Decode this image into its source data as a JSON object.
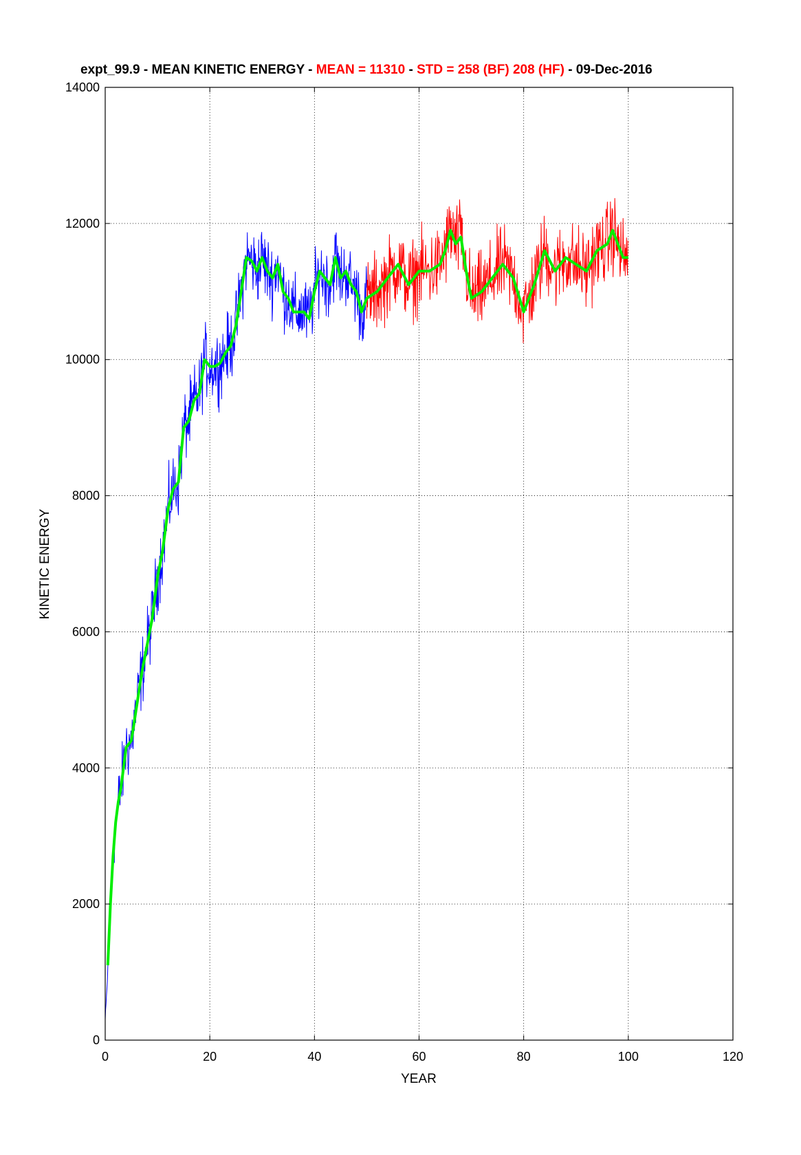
{
  "chart_data": {
    "type": "line",
    "title_parts": [
      {
        "text": "expt_99.9 - MEAN KINETIC ENERGY - ",
        "color": "#000000"
      },
      {
        "text": "MEAN = 11310",
        "color": "#ff0000"
      },
      {
        "text": " - ",
        "color": "#000000"
      },
      {
        "text": "STD =  258 (BF)  208 (HF)",
        "color": "#ff0000"
      },
      {
        "text": " - 09-Dec-2016",
        "color": "#000000"
      }
    ],
    "xlabel": "YEAR",
    "ylabel": "KINETIC ENERGY",
    "xlim": [
      0,
      120
    ],
    "ylim": [
      0,
      14000
    ],
    "xticks": [
      "0",
      "20",
      "40",
      "60",
      "80",
      "100",
      "120"
    ],
    "yticks": [
      "0",
      "2000",
      "4000",
      "6000",
      "8000",
      "10000",
      "12000",
      "14000"
    ],
    "grid": true,
    "series": [
      {
        "color": "#0000ff",
        "noise": 250,
        "x": [
          0,
          0.3,
          0.6,
          1,
          1.5,
          2,
          2.5,
          3,
          4,
          5,
          6,
          7,
          8,
          9,
          10,
          11,
          12,
          13,
          14,
          15,
          16,
          17,
          18,
          19,
          20,
          21,
          22,
          23,
          24,
          25,
          26,
          27,
          28,
          29,
          30,
          31,
          32,
          33,
          34,
          35,
          36,
          37,
          38,
          39,
          40,
          41,
          42,
          43,
          44,
          45,
          46,
          47,
          48,
          49,
          50
        ],
        "y": [
          300,
          700,
          1200,
          2000,
          2700,
          3200,
          3500,
          3700,
          4300,
          4400,
          4900,
          5400,
          5800,
          6200,
          6800,
          7200,
          7800,
          8100,
          8200,
          9000,
          9100,
          9400,
          9500,
          10000,
          9900,
          9900,
          9950,
          10100,
          10200,
          10500,
          11000,
          11500,
          11450,
          11300,
          11500,
          11300,
          11200,
          11400,
          11000,
          10900,
          10700,
          10700,
          10700,
          10600,
          11000,
          11300,
          11200,
          11100,
          11500,
          11200,
          11300,
          11100,
          11000,
          10700,
          10900
        ]
      },
      {
        "color": "#ff0000",
        "noise": 280,
        "x": [
          50,
          52,
          54,
          56,
          58,
          60,
          62,
          64,
          65,
          66,
          67,
          68,
          69,
          70,
          72,
          74,
          76,
          78,
          80,
          82,
          84,
          86,
          88,
          90,
          92,
          94,
          96,
          97,
          98,
          99,
          100
        ],
        "y": [
          10900,
          11000,
          11200,
          11400,
          11100,
          11300,
          11300,
          11400,
          11600,
          11900,
          11700,
          11800,
          11300,
          10900,
          11000,
          11200,
          11400,
          11200,
          10700,
          11100,
          11600,
          11300,
          11500,
          11400,
          11300,
          11600,
          11700,
          11900,
          11700,
          11500,
          11500
        ]
      },
      {
        "color": "#00ee00",
        "noise": 0,
        "x": [
          0.5,
          1,
          1.5,
          2,
          2.5,
          3,
          4,
          5,
          6,
          7,
          8,
          9,
          10,
          11,
          12,
          13,
          14,
          15,
          16,
          17,
          18,
          19,
          20,
          21,
          22,
          23,
          24,
          25,
          26,
          27,
          28,
          29,
          30,
          31,
          32,
          33,
          34,
          35,
          36,
          37,
          38,
          39,
          40,
          41,
          42,
          43,
          44,
          45,
          46,
          47,
          48,
          49,
          50,
          52,
          54,
          56,
          58,
          60,
          62,
          64,
          65,
          66,
          67,
          68,
          69,
          70,
          72,
          74,
          76,
          78,
          80,
          82,
          84,
          86,
          88,
          90,
          92,
          94,
          96,
          97,
          98,
          99,
          100
        ],
        "y": [
          1100,
          2000,
          2700,
          3200,
          3500,
          3700,
          4300,
          4400,
          4900,
          5400,
          5800,
          6200,
          6800,
          7200,
          7800,
          8100,
          8200,
          9000,
          9100,
          9400,
          9500,
          10000,
          9900,
          9900,
          9950,
          10100,
          10200,
          10500,
          11000,
          11500,
          11450,
          11300,
          11500,
          11300,
          11200,
          11400,
          11000,
          10900,
          10700,
          10700,
          10700,
          10600,
          11000,
          11300,
          11200,
          11100,
          11500,
          11200,
          11300,
          11100,
          11000,
          10700,
          10900,
          11000,
          11200,
          11400,
          11100,
          11300,
          11300,
          11400,
          11600,
          11900,
          11700,
          11800,
          11300,
          10900,
          11000,
          11200,
          11400,
          11200,
          10700,
          11100,
          11600,
          11300,
          11500,
          11400,
          11300,
          11600,
          11700,
          11900,
          11700,
          11500,
          11500
        ]
      }
    ]
  }
}
